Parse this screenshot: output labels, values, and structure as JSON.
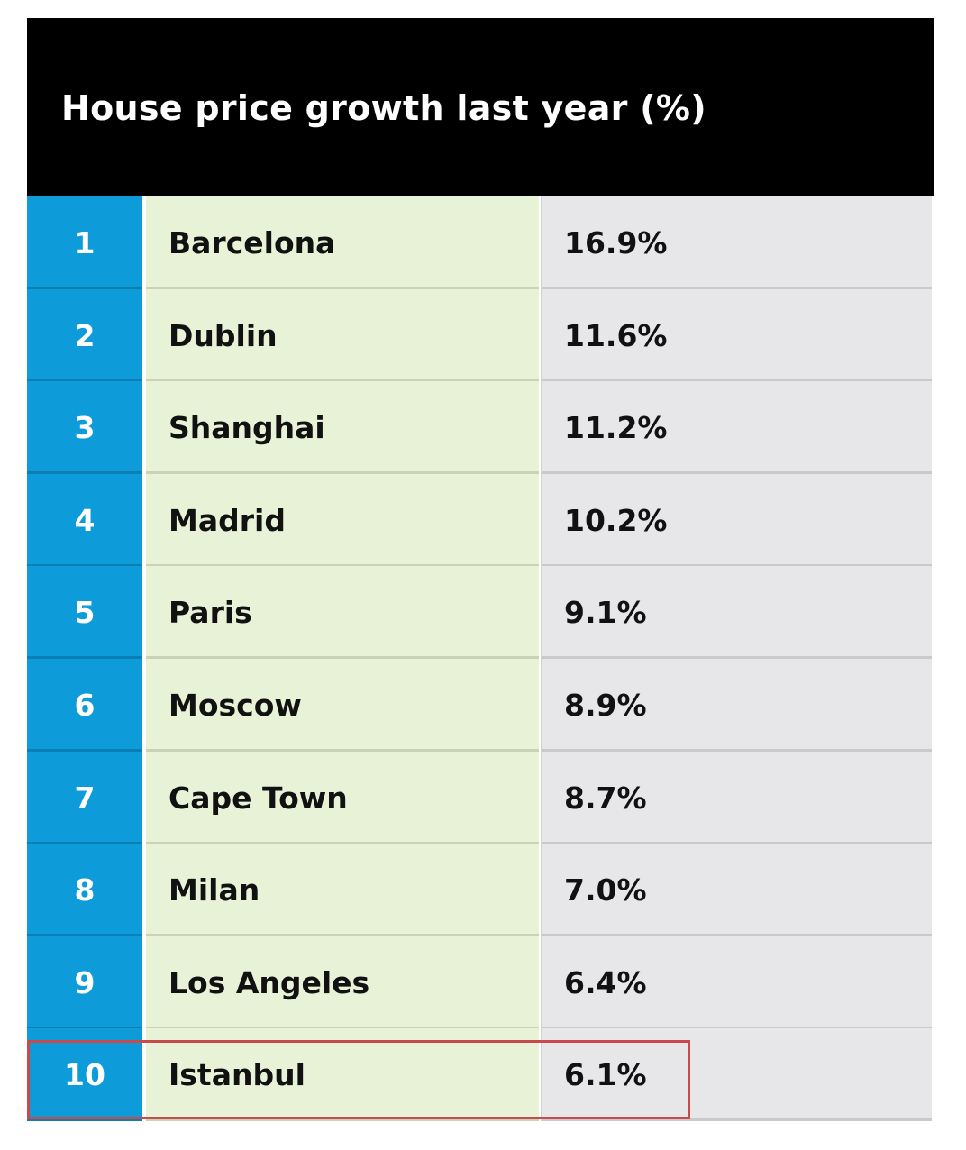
{
  "table": {
    "title": "House price growth last year (%)",
    "rows": [
      {
        "rank": "1",
        "city": "Barcelona",
        "value": "16.9%"
      },
      {
        "rank": "2",
        "city": "Dublin",
        "value": "11.6%"
      },
      {
        "rank": "3",
        "city": "Shanghai",
        "value": "11.2%"
      },
      {
        "rank": "4",
        "city": "Madrid",
        "value": "10.2%"
      },
      {
        "rank": "5",
        "city": "Paris",
        "value": "9.1%"
      },
      {
        "rank": "6",
        "city": "Moscow",
        "value": "8.9%"
      },
      {
        "rank": "7",
        "city": "Cape Town",
        "value": "8.7%"
      },
      {
        "rank": "8",
        "city": "Milan",
        "value": "7.0%"
      },
      {
        "rank": "9",
        "city": "Los Angeles",
        "value": "6.4%"
      },
      {
        "rank": "10",
        "city": "Istanbul",
        "value": "6.1%"
      }
    ],
    "highlighted_rank": "10"
  },
  "colors": {
    "header_bg": "#000000",
    "rank_bg": "#0d9bd9",
    "city_bg": "#e7f2d6",
    "value_bg": "#e7e7ea",
    "highlight_border": "#c94a4a"
  }
}
